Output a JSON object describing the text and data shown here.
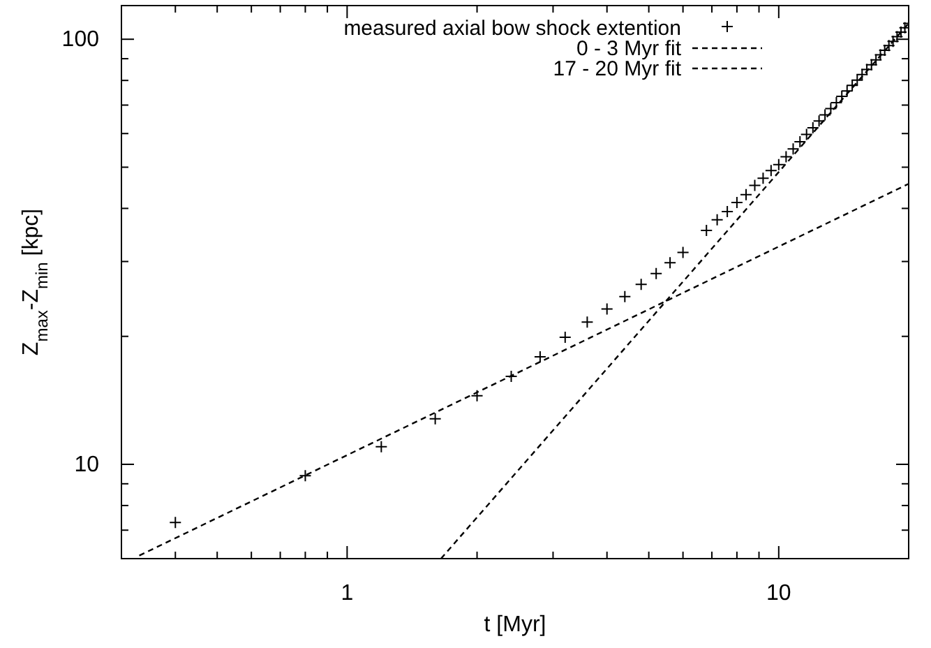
{
  "chart_data": {
    "type": "scatter",
    "xlabel": "t [Myr]",
    "ylabel": "Z$_{max}$-Z$_{min}$ [kpc]",
    "log": "xy",
    "grid": false,
    "legend": "top",
    "xlim": [
      0.3,
      20
    ],
    "ylim": [
      6,
      120
    ],
    "xticks": [
      {
        "value": 0.3,
        "label": null
      },
      {
        "value": 0.4,
        "label": null
      },
      {
        "value": 0.5,
        "label": null
      },
      {
        "value": 0.6,
        "label": null
      },
      {
        "value": 0.7,
        "label": null
      },
      {
        "value": 0.8,
        "label": null
      },
      {
        "value": 0.9,
        "label": null
      },
      1,
      {
        "value": 2,
        "label": null
      },
      {
        "value": 3,
        "label": null
      },
      {
        "value": 4,
        "label": null
      },
      {
        "value": 5,
        "label": null
      },
      {
        "value": 6,
        "label": null
      },
      {
        "value": 7,
        "label": null
      },
      {
        "value": 8,
        "label": null
      },
      {
        "value": 9,
        "label": null
      },
      10,
      {
        "value": 20,
        "label": null
      }
    ],
    "yticks": [
      {
        "value": 6,
        "label": null
      },
      {
        "value": 7,
        "label": null
      },
      {
        "value": 8,
        "label": null
      },
      {
        "value": 9,
        "label": null
      },
      10,
      {
        "value": 20,
        "label": null
      },
      {
        "value": 30,
        "label": null
      },
      {
        "value": 40,
        "label": null
      },
      {
        "value": 50,
        "label": null
      },
      {
        "value": 60,
        "label": null
      },
      {
        "value": 70,
        "label": null
      },
      {
        "value": 80,
        "label": null
      },
      {
        "value": 90,
        "label": null
      },
      100
    ],
    "series": [
      {
        "name": "measured axial bow shock extention",
        "marker": "cross",
        "color": "#000000",
        "x": [
          0.4,
          0.8,
          1.2,
          1.6,
          2.0,
          2.4,
          2.8,
          3.2,
          3.6,
          4.0,
          4.4,
          4.8,
          5.2,
          5.6,
          6.0,
          6.8,
          7.2,
          7.6,
          8.0,
          8.4,
          8.8,
          9.2,
          9.6,
          10.0,
          10.4,
          10.8,
          11.2,
          11.6,
          12.0,
          12.4,
          12.8,
          13.2,
          13.6,
          14.0,
          14.4,
          14.8,
          15.2,
          15.6,
          16.0,
          16.4,
          16.8,
          17.2,
          17.6,
          18.0,
          18.4,
          18.8,
          19.2,
          19.6,
          20.0
        ],
        "values": [
          7.3,
          9.4,
          11.0,
          12.8,
          14.5,
          16.1,
          17.9,
          19.9,
          21.6,
          23.2,
          24.8,
          26.5,
          28.1,
          29.8,
          31.5,
          35.5,
          37.6,
          39.3,
          41.3,
          43.1,
          45.3,
          47.1,
          49.1,
          50.7,
          52.9,
          55.2,
          57.4,
          59.7,
          61.9,
          64.2,
          66.4,
          68.7,
          70.9,
          73.4,
          75.6,
          77.9,
          80.1,
          82.6,
          84.9,
          87.1,
          89.4,
          91.9,
          94.2,
          96.6,
          98.9,
          101.4,
          103.9,
          106.4,
          109.0
        ]
      },
      {
        "name": "0 - 3 Myr fit",
        "type": "line",
        "line_style": "dashed",
        "color": "#000000",
        "x": [
          0.33,
          20
        ],
        "values": [
          6.1,
          45.7
        ]
      },
      {
        "name": "17 - 20 Myr fit",
        "type": "line",
        "line_style": "dashed",
        "color": "#000000",
        "x": [
          1.65,
          20
        ],
        "values": [
          6,
          109
        ]
      }
    ]
  }
}
